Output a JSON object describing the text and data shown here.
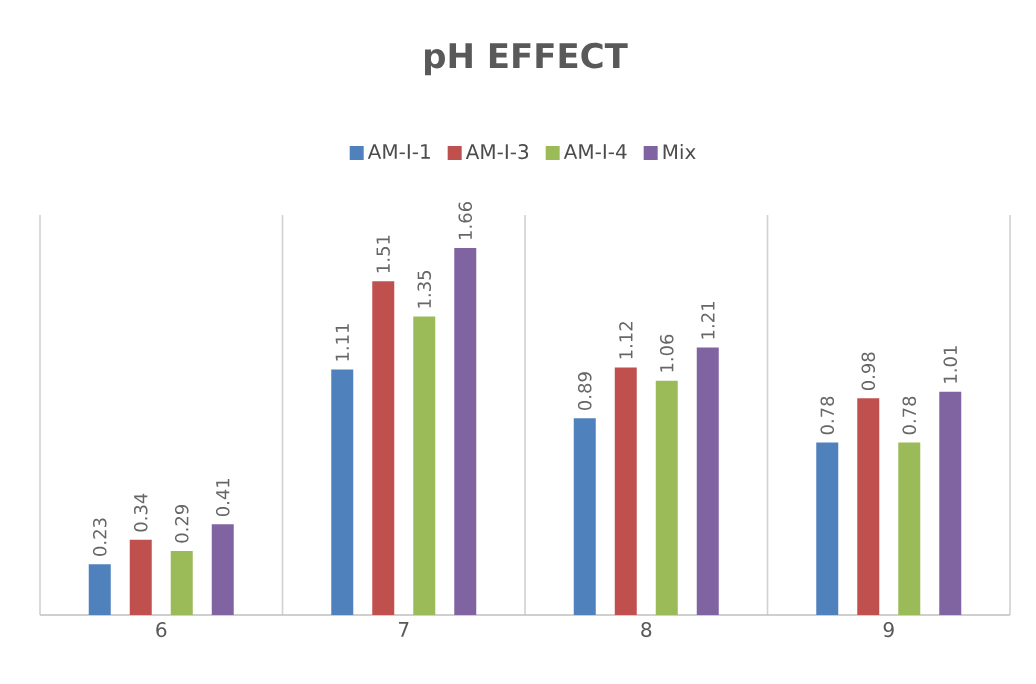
{
  "chart_data": {
    "type": "bar",
    "title": "pH EFFECT",
    "categories": [
      "6",
      "7",
      "8",
      "9"
    ],
    "series": [
      {
        "name": "AM-I-1",
        "color": "#4f81bd",
        "values": [
          0.23,
          1.11,
          0.89,
          0.78
        ]
      },
      {
        "name": "AM-I-3",
        "color": "#c0504d",
        "values": [
          0.34,
          1.51,
          1.12,
          0.98
        ]
      },
      {
        "name": "AM-I-4",
        "color": "#9bbb59",
        "values": [
          0.29,
          1.35,
          1.06,
          0.78
        ]
      },
      {
        "name": "Mix",
        "color": "#8064a2",
        "values": [
          0.41,
          1.66,
          1.21,
          1.01
        ]
      }
    ],
    "data_labels": true,
    "grid": "x",
    "legend": "top"
  }
}
